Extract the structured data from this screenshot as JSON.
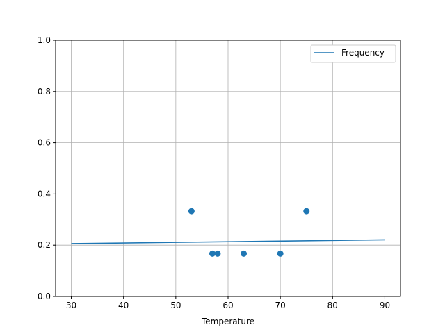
{
  "chart_data": {
    "type": "scatter",
    "title": "",
    "xlabel": "Temperature",
    "ylabel": "",
    "xlim": [
      27,
      93
    ],
    "ylim": [
      0,
      1.0
    ],
    "grid": true,
    "xticks": [
      30,
      40,
      50,
      60,
      70,
      80,
      90
    ],
    "yticks": [
      0.0,
      0.2,
      0.4,
      0.6,
      0.8,
      1.0
    ],
    "xtick_labels": [
      "30",
      "40",
      "50",
      "60",
      "70",
      "80",
      "90"
    ],
    "ytick_labels": [
      "0.0",
      "0.2",
      "0.4",
      "0.6",
      "0.8",
      "1.0"
    ],
    "legend": {
      "placement": "top-right",
      "entries": [
        "Frequency"
      ]
    },
    "series": [
      {
        "name": "Frequency",
        "kind": "line",
        "color": "#1f77b4",
        "x": [
          30,
          90
        ],
        "y": [
          0.206,
          0.221
        ]
      },
      {
        "kind": "scatter",
        "color": "#1f77b4",
        "x": [
          53,
          57,
          58,
          63,
          70,
          75
        ],
        "y": [
          0.333,
          0.167,
          0.167,
          0.167,
          0.167,
          0.333
        ]
      }
    ]
  }
}
